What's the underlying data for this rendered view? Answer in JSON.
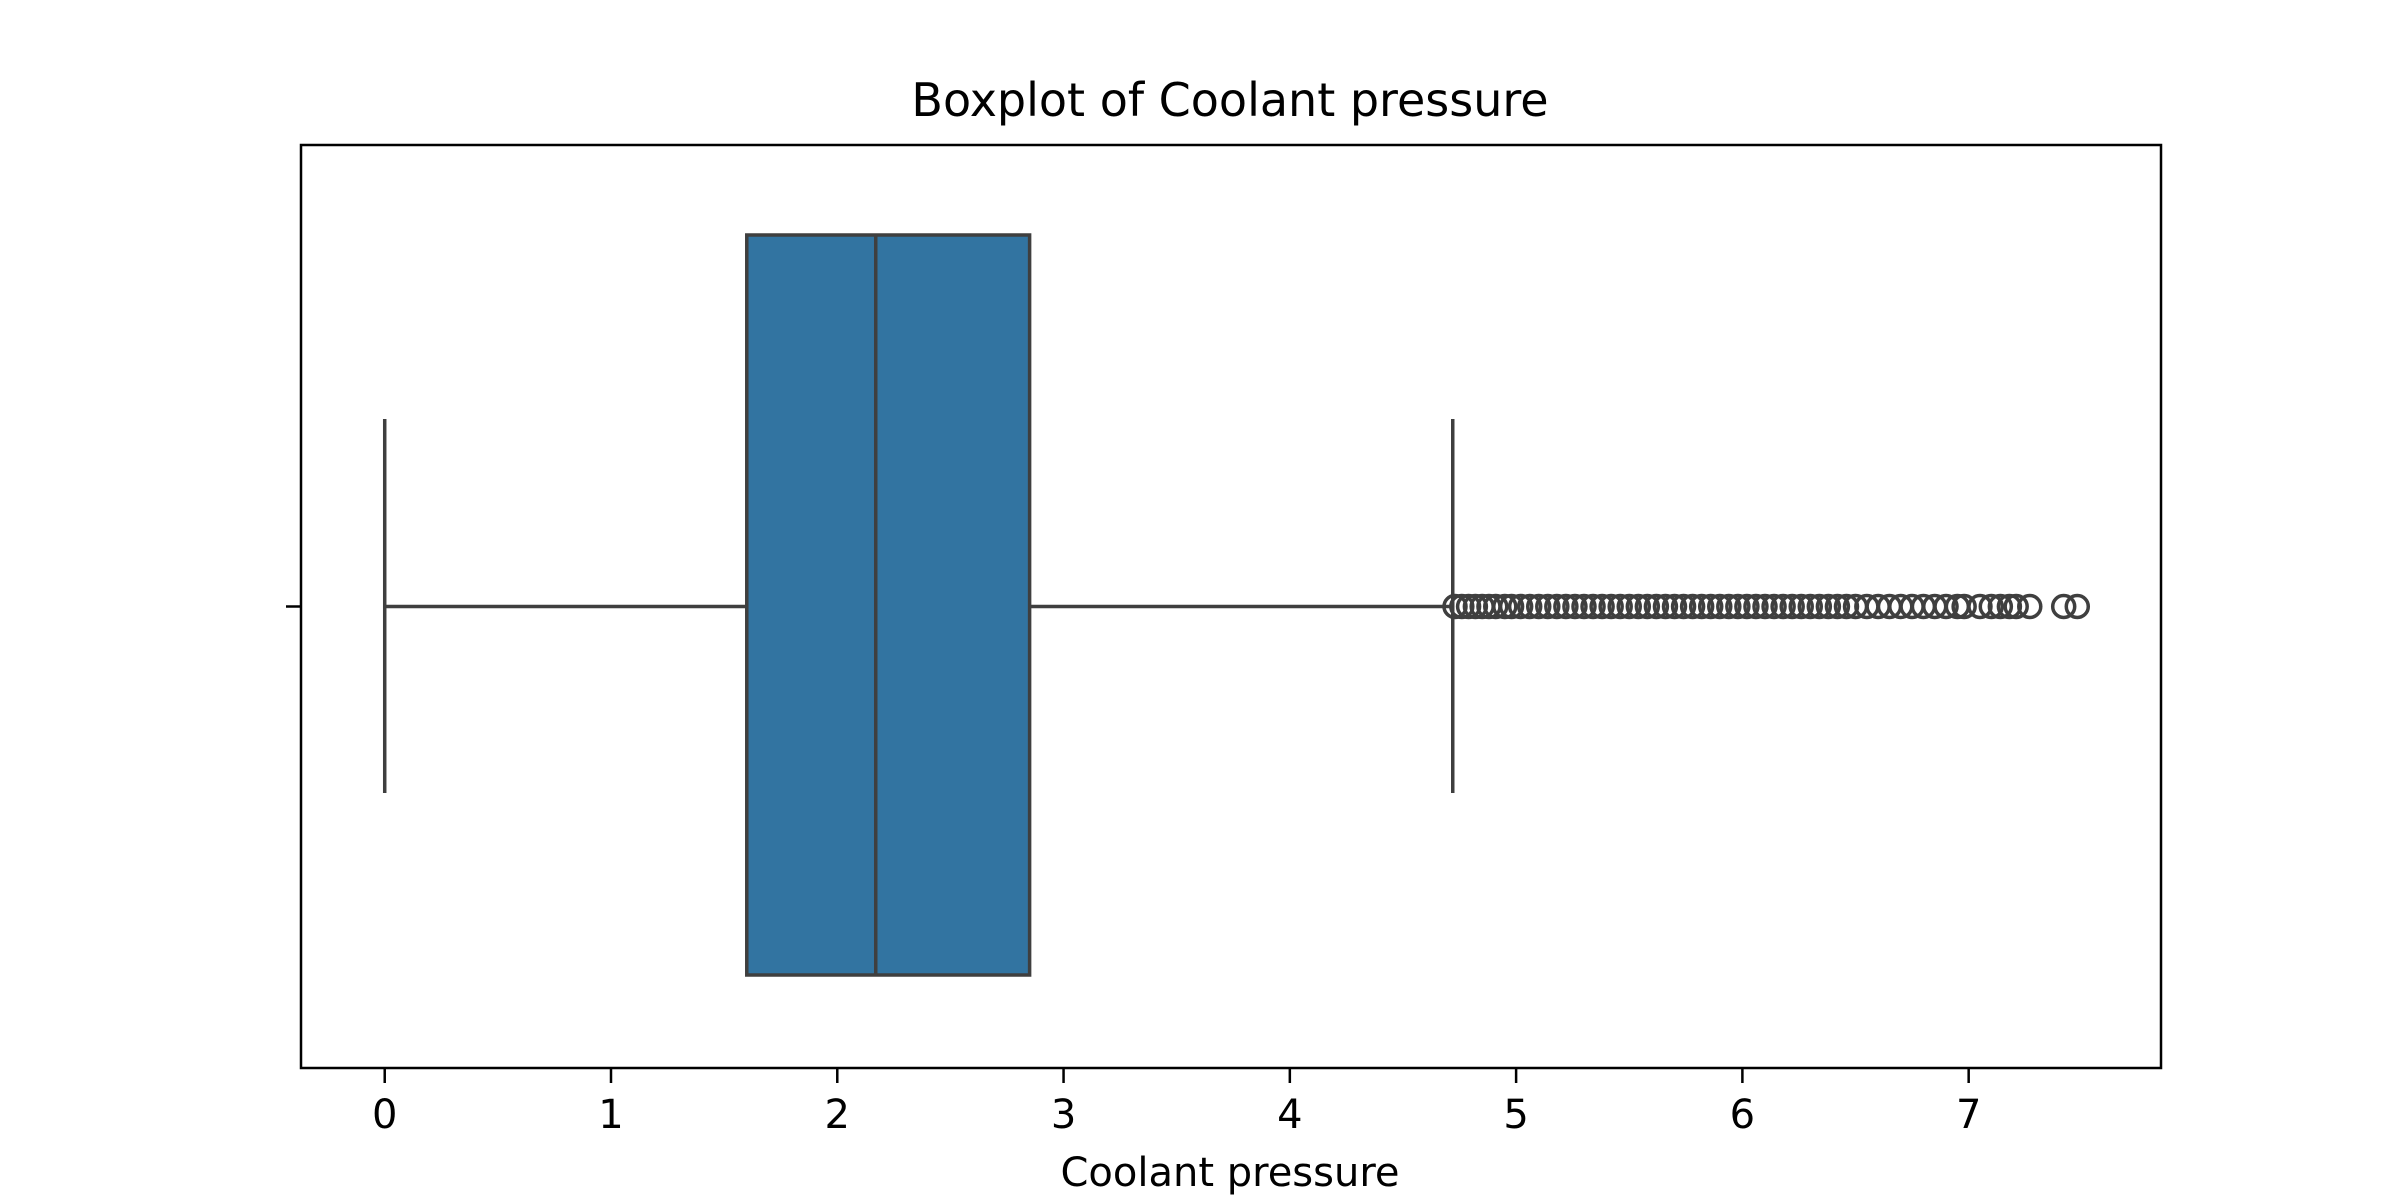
{
  "chart_data": {
    "type": "box",
    "orientation": "horizontal",
    "title": "Boxplot of Coolant pressure",
    "xlabel": "Coolant pressure",
    "ylabel": "",
    "xlim": [
      -0.37,
      7.85
    ],
    "xticks": [
      0,
      1,
      2,
      3,
      4,
      5,
      6,
      7
    ],
    "xtick_labels": [
      "0",
      "1",
      "2",
      "3",
      "4",
      "5",
      "6",
      "7"
    ],
    "grid": false,
    "box": {
      "whisker_low": 0.0,
      "q1": 1.6,
      "median": 2.17,
      "q3": 2.85,
      "whisker_high": 4.72,
      "fill_color": "#3274a1",
      "line_color": "#3f3f3f"
    },
    "outliers": [
      4.73,
      4.76,
      4.79,
      4.82,
      4.85,
      4.88,
      4.91,
      4.95,
      4.98,
      5.02,
      5.06,
      5.1,
      5.14,
      5.18,
      5.22,
      5.26,
      5.3,
      5.34,
      5.38,
      5.42,
      5.46,
      5.5,
      5.54,
      5.58,
      5.62,
      5.66,
      5.7,
      5.74,
      5.78,
      5.82,
      5.86,
      5.9,
      5.94,
      5.98,
      6.02,
      6.06,
      6.1,
      6.14,
      6.18,
      6.22,
      6.26,
      6.3,
      6.34,
      6.38,
      6.42,
      6.46,
      6.5,
      6.55,
      6.6,
      6.65,
      6.7,
      6.75,
      6.8,
      6.85,
      6.9,
      6.95,
      6.98,
      7.05,
      7.1,
      7.14,
      7.18,
      7.21,
      7.27,
      7.42,
      7.48
    ]
  }
}
